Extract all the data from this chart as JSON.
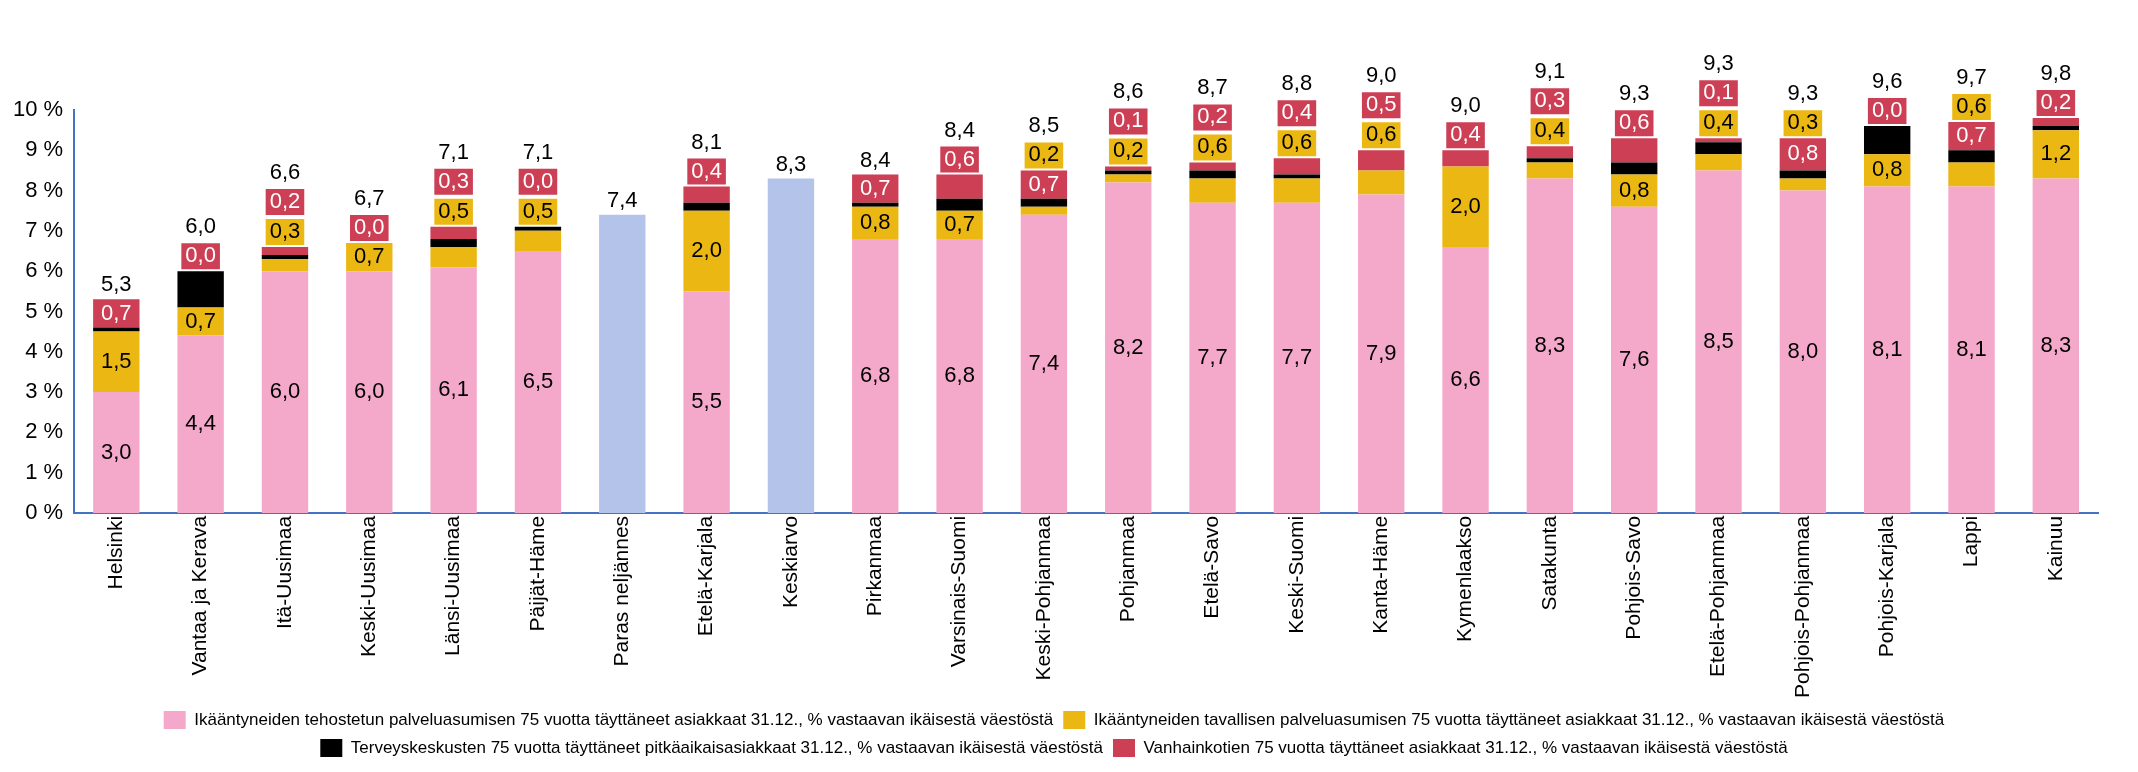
{
  "chart_data": {
    "type": "bar",
    "stacked": true,
    "categories": [
      "Helsinki",
      "Vantaa ja Kerava",
      "Itä-Uusimaa",
      "Keski-Uusimaa",
      "Länsi-Uusimaa",
      "Päijät-Häme",
      "Paras neljännes",
      "Etelä-Karjala",
      "Keskiarvo",
      "Pirkanmaa",
      "Varsinais-Suomi",
      "Keski-Pohjanmaa",
      "Pohjanmaa",
      "Etelä-Savo",
      "Keski-Suomi",
      "Kanta-Häme",
      "Kymenlaakso",
      "Satakunta",
      "Pohjois-Savo",
      "Etelä-Pohjanmaa",
      "Pohjois-Pohjanmaa",
      "Pohjois-Karjala",
      "Lappi",
      "Kainuu"
    ],
    "series": [
      {
        "name": "Ikääntyneiden tehostetun palveluasumisen 75 vuotta täyttäneet asiakkaat 31.12., % vastaavan ikäisestä väestöstä",
        "color": "#f4a9cb",
        "values": [
          3.0,
          4.4,
          6.0,
          6.0,
          6.1,
          6.5,
          null,
          5.5,
          null,
          6.8,
          6.8,
          7.4,
          8.2,
          7.7,
          7.7,
          7.9,
          6.6,
          8.3,
          7.6,
          8.5,
          8.0,
          8.1,
          8.1,
          8.3
        ],
        "value_labels": [
          "3,0",
          "4,4",
          "6,0",
          "6,0",
          "6,1",
          "6,5",
          null,
          "5,5",
          null,
          "6,8",
          "6,8",
          "7,4",
          "8,2",
          "7,7",
          "7,7",
          "7,9",
          "6,6",
          "8,3",
          "7,6",
          "8,5",
          "8,0",
          "8,1",
          "8,1",
          "8,3"
        ]
      },
      {
        "name": "Ikääntyneiden tavallisen palveluasumisen 75 vuotta täyttäneet asiakkaat 31.12., % vastaavan ikäisestä väestöstä",
        "color": "#ebb713",
        "values": [
          1.5,
          0.7,
          0.3,
          0.7,
          0.5,
          0.5,
          null,
          2.0,
          null,
          0.8,
          0.7,
          0.2,
          0.2,
          0.6,
          0.6,
          0.6,
          2.0,
          0.4,
          0.8,
          0.4,
          0.3,
          0.8,
          0.6,
          1.2
        ],
        "value_labels": [
          "1,5",
          "0,7",
          "0,3",
          "0,7",
          "0,5",
          "0,5",
          null,
          "2,0",
          null,
          "0,8",
          "0,7",
          "0,2",
          "0,2",
          "0,6",
          "0,6",
          "0,6",
          "2,0",
          "0,4",
          "0,8",
          "0,4",
          "0,3",
          "0,8",
          "0,6",
          "1,2"
        ]
      },
      {
        "name": "Terveyskeskusten 75 vuotta täyttäneet pitkäaikaisasiakkaat 31.12., % vastaavan ikäisestä väestöstä",
        "color": "#000000",
        "values": [
          0.1,
          0.9,
          0.1,
          0.0,
          0.2,
          0.1,
          null,
          0.2,
          null,
          0.1,
          0.3,
          0.2,
          0.1,
          0.2,
          0.1,
          0.0,
          0.0,
          0.1,
          0.3,
          0.3,
          0.2,
          0.7,
          0.3,
          0.1
        ]
      },
      {
        "name": "Vanhainkotien 75 vuotta täyttäneet asiakkaat 31.12., % vastaavan ikäisestä väestöstä",
        "color": "#cc3f55",
        "values": [
          0.7,
          0.0,
          0.2,
          0.0,
          0.3,
          0.0,
          null,
          0.4,
          null,
          0.7,
          0.6,
          0.7,
          0.1,
          0.2,
          0.4,
          0.5,
          0.4,
          0.3,
          0.6,
          0.1,
          0.8,
          0.0,
          0.7,
          0.2
        ],
        "value_labels": [
          "0,7",
          "0,0",
          "0,2",
          "0,0",
          "0,3",
          "0,0",
          null,
          "0,4",
          null,
          "0,7",
          "0,6",
          "0,7",
          "0,1",
          "0,2",
          "0,4",
          "0,5",
          "0,4",
          "0,3",
          "0,6",
          "0,1",
          "0,8",
          "0,0",
          "0,7",
          "0,2"
        ]
      },
      {
        "color": "#b4c3ea",
        "values": [
          null,
          null,
          null,
          null,
          null,
          null,
          7.4,
          null,
          8.3,
          null,
          null,
          null,
          null,
          null,
          null,
          null,
          null,
          null,
          null,
          null,
          null,
          null,
          null,
          null
        ]
      }
    ],
    "totals": [
      "5,3",
      "6,0",
      "6,6",
      "6,7",
      "7,1",
      "7,1",
      "7,4",
      "8,1",
      "8,3",
      "8,4",
      "8,4",
      "8,5",
      "8,6",
      "8,7",
      "8,8",
      "9,0",
      "9,0",
      "9,1",
      "9,3",
      "9,3",
      "9,3",
      "9,6",
      "9,7",
      "9,8"
    ],
    "ylim": [
      0,
      10
    ],
    "yticks": [
      {
        "value": 0,
        "label": "0 %"
      },
      {
        "value": 1,
        "label": "1 %"
      },
      {
        "value": 2,
        "label": "2 %"
      },
      {
        "value": 3,
        "label": "3 %"
      },
      {
        "value": 4,
        "label": "4 %"
      },
      {
        "value": 5,
        "label": "5 %"
      },
      {
        "value": 6,
        "label": "6 %"
      },
      {
        "value": 7,
        "label": "7 %"
      },
      {
        "value": 8,
        "label": "8 %"
      },
      {
        "value": 9,
        "label": "9 %"
      },
      {
        "value": 10,
        "label": "10 %"
      }
    ],
    "grid": false,
    "legend": "bottom"
  }
}
